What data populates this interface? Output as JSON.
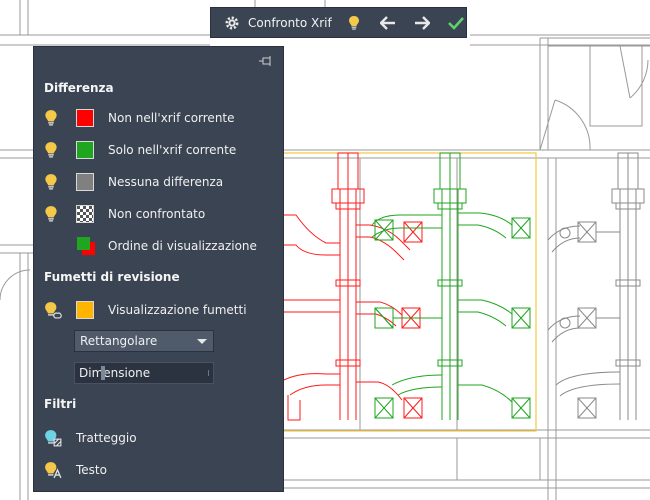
{
  "toolbar": {
    "title": "Confronto Xrif",
    "icons": [
      "gear-icon",
      "lightbulb-icon",
      "arrow-left-icon",
      "arrow-right-icon",
      "checkmark-icon"
    ]
  },
  "panel": {
    "difference_heading": "Differenza",
    "difference_items": [
      {
        "label": "Non nell'xrif corrente",
        "color": "#ff0000"
      },
      {
        "label": "Solo nell'xrif corrente",
        "color": "#1fa51f"
      },
      {
        "label": "Nessuna differenza",
        "color": "#808080"
      },
      {
        "label": "Non confrontato",
        "color": "checkered"
      },
      {
        "label": "Ordine di visualizzazione",
        "color": "red-green-overlap"
      }
    ],
    "clouds_heading": "Fumetti di revisione",
    "clouds_item": {
      "label": "Visualizzazione fumetti",
      "color": "#ffb400"
    },
    "cloud_shape_value": "Rettangolare",
    "cloud_size_label": "Dimensione",
    "filters_heading": "Filtri",
    "filter_items": [
      {
        "label": "Tratteggio",
        "icon": "hatch-icon"
      },
      {
        "label": "Testo",
        "icon": "text-icon"
      }
    ]
  },
  "colors": {
    "removed": "#ff0000",
    "added": "#1fa51f",
    "unchanged": "#8a8a8a",
    "cloud": "#f2c640",
    "panel_bg": "#3b4453"
  }
}
